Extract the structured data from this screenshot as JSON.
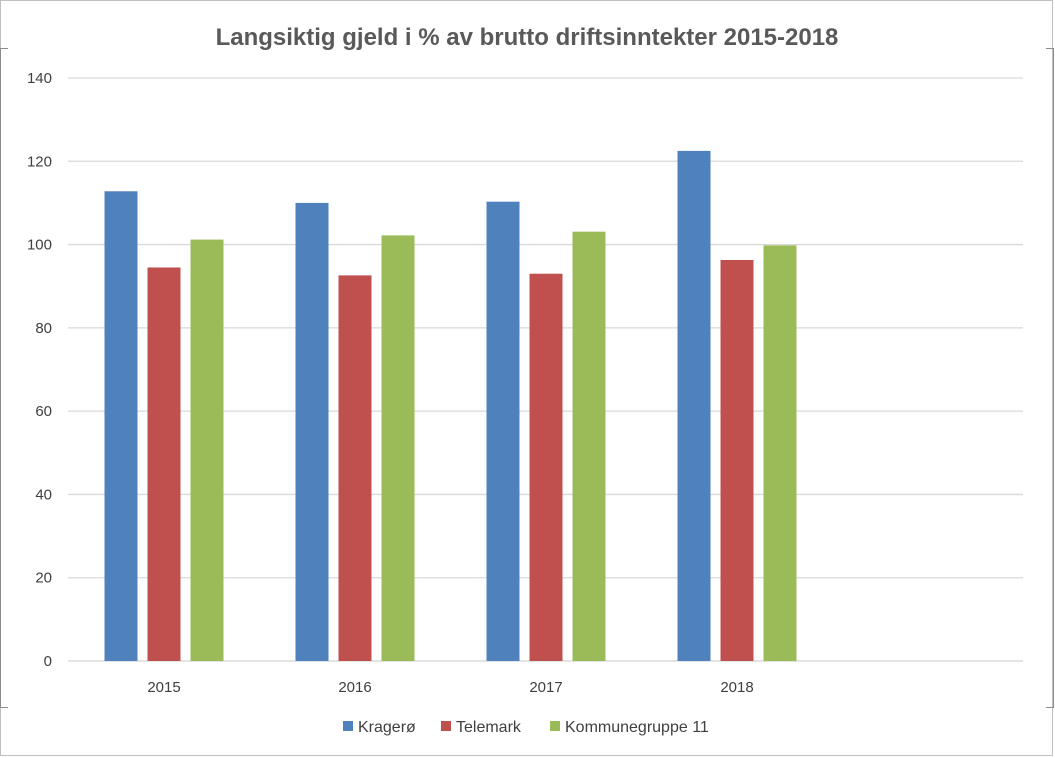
{
  "chart_data": {
    "type": "bar",
    "title": "Langsiktig gjeld i % av brutto driftsinntekter 2015-2018",
    "xlabel": "",
    "ylabel": "",
    "categories": [
      "2015",
      "2016",
      "2017",
      "2018"
    ],
    "series": [
      {
        "name": "Kragerø",
        "color": "#4f81bd",
        "values": [
          112.8,
          110.0,
          110.3,
          122.5
        ]
      },
      {
        "name": "Telemark",
        "color": "#c0504d",
        "values": [
          94.5,
          92.6,
          93.0,
          96.3
        ]
      },
      {
        "name": "Kommunegruppe 11",
        "color": "#9bbb59",
        "values": [
          101.2,
          102.2,
          103.1,
          99.8
        ]
      }
    ],
    "ylim": [
      0,
      140
    ],
    "yticks": [
      0,
      20,
      40,
      60,
      80,
      100,
      120,
      140
    ],
    "grid": true,
    "legend_position": "bottom"
  }
}
